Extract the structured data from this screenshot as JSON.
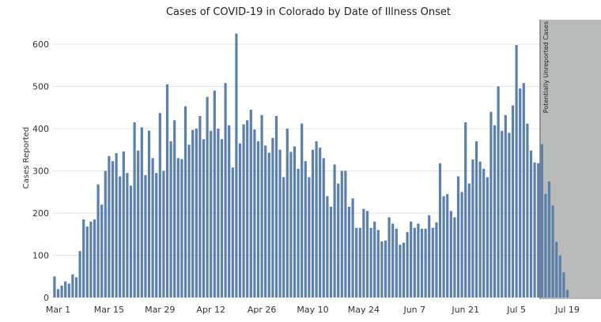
{
  "chart_data": {
    "type": "bar",
    "title": "Cases of COVID-19 in Colorado by Date of Illness Onset",
    "ylabel": "Cases Reported",
    "xlabel": "",
    "ylim": [
      0,
      650
    ],
    "yticks": [
      0,
      100,
      200,
      300,
      400,
      500,
      600
    ],
    "x_start": "2020-02-29",
    "xticks": [
      {
        "label": "Mar 1",
        "date": "2020-03-01"
      },
      {
        "label": "Mar 15",
        "date": "2020-03-15"
      },
      {
        "label": "Mar 29",
        "date": "2020-03-29"
      },
      {
        "label": "Apr 12",
        "date": "2020-04-12"
      },
      {
        "label": "Apr 26",
        "date": "2020-04-26"
      },
      {
        "label": "May 10",
        "date": "2020-05-10"
      },
      {
        "label": "May 24",
        "date": "2020-05-24"
      },
      {
        "label": "Jun 7",
        "date": "2020-06-07"
      },
      {
        "label": "Jun 21",
        "date": "2020-06-21"
      },
      {
        "label": "Jul 5",
        "date": "2020-07-05"
      },
      {
        "label": "Jul 19",
        "date": "2020-07-19"
      }
    ],
    "shaded_region": {
      "label": "Potentially Unreported Cases",
      "start": "2020-07-12",
      "end": "2020-07-24",
      "color": "#b9bbba"
    },
    "bar_color": "#5b80ae",
    "grid": true,
    "values": [
      50,
      20,
      28,
      38,
      33,
      55,
      48,
      110,
      185,
      168,
      180,
      185,
      268,
      220,
      300,
      335,
      323,
      342,
      287,
      346,
      295,
      265,
      415,
      348,
      403,
      290,
      395,
      330,
      295,
      437,
      300,
      505,
      370,
      420,
      330,
      328,
      453,
      362,
      397,
      400,
      430,
      375,
      475,
      395,
      490,
      400,
      375,
      508,
      408,
      308,
      625,
      365,
      410,
      420,
      445,
      398,
      370,
      432,
      360,
      343,
      378,
      430,
      350,
      285,
      400,
      345,
      358,
      305,
      412,
      323,
      285,
      350,
      370,
      355,
      330,
      240,
      215,
      315,
      270,
      300,
      300,
      215,
      235,
      165,
      165,
      210,
      205,
      165,
      180,
      160,
      133,
      135,
      190,
      175,
      163,
      125,
      130,
      155,
      180,
      165,
      175,
      163,
      163,
      195,
      165,
      178,
      318,
      240,
      245,
      205,
      190,
      287,
      250,
      415,
      270,
      327,
      370,
      322,
      305,
      285,
      440,
      408,
      500,
      395,
      432,
      390,
      455,
      598,
      495,
      508,
      412,
      348,
      320,
      318,
      363,
      245,
      275,
      218,
      132,
      100,
      60,
      18
    ]
  }
}
